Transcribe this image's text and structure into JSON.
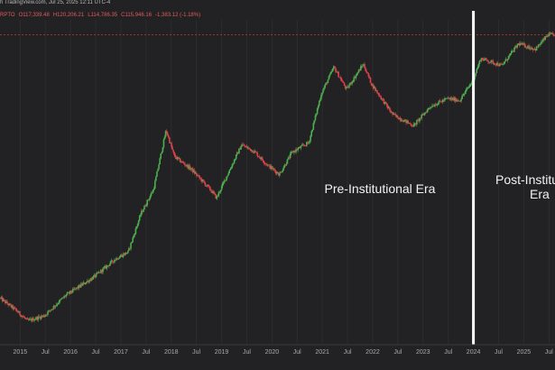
{
  "header": {
    "source_line": "h TradingView.com, Jul 25, 2025 12:11 UTC-4",
    "ohlc": {
      "symbol_fragment": "RPTO",
      "open": "O117,339.48",
      "high": "H120,206.21",
      "low": "L114,786.35",
      "close": "C115,946.16",
      "change": "-1,383.12 (-1.18%)"
    }
  },
  "annotations": {
    "pre_era": "Pre-Institutional Era",
    "post_era_line1": "Post-Institut",
    "post_era_line2": "Era"
  },
  "colors": {
    "background": "#222224",
    "up_candle": "#4caf50",
    "down_candle": "#e0414b",
    "era_divider": "#ffffff",
    "last_price_line": "#c0392b",
    "grid": "#2c2c2e"
  },
  "chart_data": {
    "type": "candlestick",
    "title": "",
    "x_axis_labels": [
      "2015",
      "Jul",
      "2016",
      "Jul",
      "2017",
      "Jul",
      "2018",
      "Jul",
      "2019",
      "Jul",
      "2020",
      "Jul",
      "2021",
      "Jul",
      "2022",
      "Jul",
      "2023",
      "Jul",
      "2024",
      "Jul",
      "2025",
      "Jul"
    ],
    "x_range": [
      2014.6,
      2025.62
    ],
    "y_scale": "log",
    "y_range_usd": [
      150,
      160000
    ],
    "last_close_usd": 115946.16,
    "era_divider_date": "2024-01",
    "price_path_approx": [
      {
        "date": "2014-07",
        "price": 450
      },
      {
        "date": "2014-12",
        "price": 320
      },
      {
        "date": "2015-03",
        "price": 250
      },
      {
        "date": "2015-07",
        "price": 280
      },
      {
        "date": "2015-12",
        "price": 430
      },
      {
        "date": "2016-07",
        "price": 650
      },
      {
        "date": "2016-12",
        "price": 950
      },
      {
        "date": "2017-03",
        "price": 1100
      },
      {
        "date": "2017-06",
        "price": 2500
      },
      {
        "date": "2017-09",
        "price": 4200
      },
      {
        "date": "2017-12",
        "price": 15000
      },
      {
        "date": "2018-02",
        "price": 8500
      },
      {
        "date": "2018-06",
        "price": 6500
      },
      {
        "date": "2018-11",
        "price": 4000
      },
      {
        "date": "2018-12",
        "price": 3500
      },
      {
        "date": "2019-06",
        "price": 11000
      },
      {
        "date": "2019-09",
        "price": 9500
      },
      {
        "date": "2019-12",
        "price": 7200
      },
      {
        "date": "2020-03",
        "price": 5800
      },
      {
        "date": "2020-06",
        "price": 9300
      },
      {
        "date": "2020-10",
        "price": 11500
      },
      {
        "date": "2021-01",
        "price": 33000
      },
      {
        "date": "2021-04",
        "price": 58000
      },
      {
        "date": "2021-07",
        "price": 36000
      },
      {
        "date": "2021-11",
        "price": 62000
      },
      {
        "date": "2022-01",
        "price": 40000
      },
      {
        "date": "2022-06",
        "price": 21000
      },
      {
        "date": "2022-11",
        "price": 16500
      },
      {
        "date": "2023-03",
        "price": 25000
      },
      {
        "date": "2023-07",
        "price": 29500
      },
      {
        "date": "2023-10",
        "price": 28500
      },
      {
        "date": "2024-01",
        "price": 43000
      },
      {
        "date": "2024-03",
        "price": 70000
      },
      {
        "date": "2024-08",
        "price": 60000
      },
      {
        "date": "2024-12",
        "price": 96000
      },
      {
        "date": "2025-04",
        "price": 85000
      },
      {
        "date": "2025-07",
        "price": 116000
      }
    ]
  }
}
